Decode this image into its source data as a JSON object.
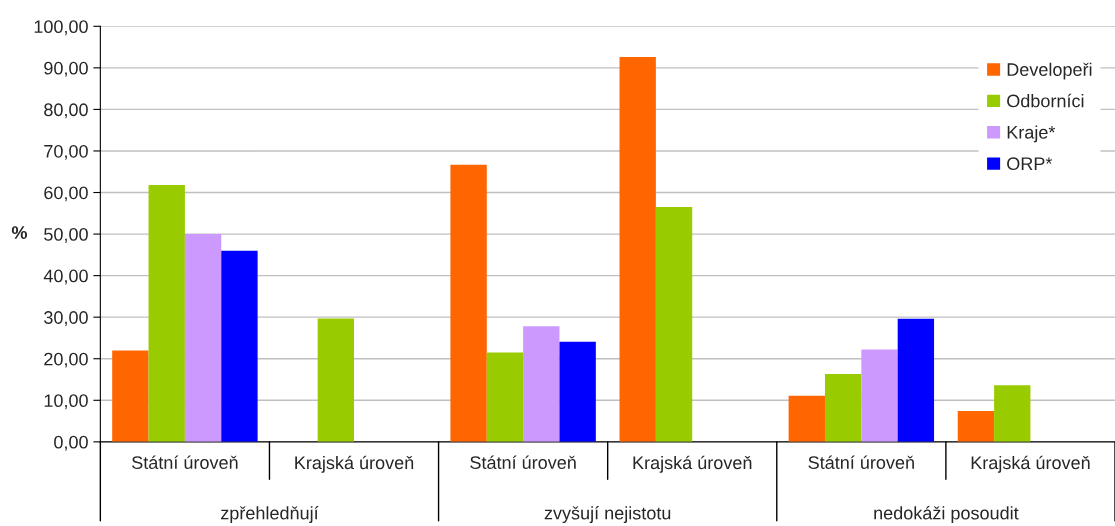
{
  "chart_data": {
    "type": "bar",
    "ylabel": "%",
    "categories": [
      "Státní úroveň",
      "Krajská úroveň",
      "Státní úroveň",
      "Krajská úroveň",
      "Státní úroveň",
      "Krajská úroveň"
    ],
    "annotations": [
      "zpřehledňují",
      "zvyšují nejistotu",
      "nedokáži posoudit"
    ],
    "series": [
      {
        "name": "Developeři",
        "color": "#ff6600",
        "values": [
          22.0,
          null,
          66.7,
          92.6,
          11.1,
          7.4
        ]
      },
      {
        "name": "Odborníci",
        "color": "#99cc00",
        "values": [
          61.8,
          29.7,
          21.5,
          56.5,
          16.3,
          13.6
        ]
      },
      {
        "name": "Kraje*",
        "color": "#cc99ff",
        "values": [
          50.0,
          null,
          27.8,
          null,
          22.2,
          null
        ]
      },
      {
        "name": "ORP*",
        "color": "#0000ff",
        "values": [
          46.0,
          null,
          24.1,
          null,
          29.6,
          null
        ]
      }
    ],
    "ylim": [
      0,
      100
    ],
    "yticks": [
      {
        "value": 0,
        "label": "0,00"
      },
      {
        "value": 10,
        "label": "10,00"
      },
      {
        "value": 20,
        "label": "20,00"
      },
      {
        "value": 30,
        "label": "30,00"
      },
      {
        "value": 40,
        "label": "40,00"
      },
      {
        "value": 50,
        "label": "50,00"
      },
      {
        "value": 60,
        "label": "60,00"
      },
      {
        "value": 70,
        "label": "70,00"
      },
      {
        "value": 80,
        "label": "80,00"
      },
      {
        "value": 90,
        "label": "90,00"
      },
      {
        "value": 100,
        "label": "100,00"
      }
    ],
    "grid": "y",
    "legend": "top right"
  }
}
